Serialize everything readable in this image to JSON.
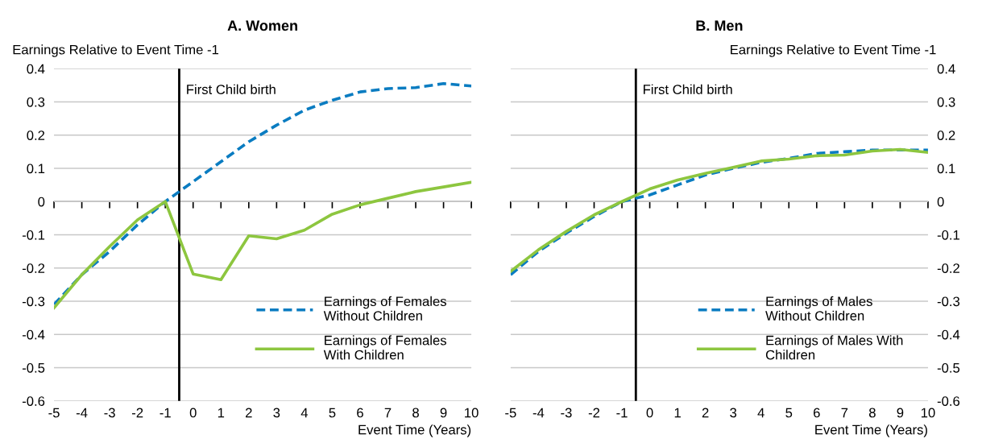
{
  "chart_data": [
    {
      "type": "line",
      "title": "A. Women",
      "xlabel": "Event Time (Years)",
      "ylabel": "Earnings Relative to Event Time -1",
      "x": [
        -5,
        -4,
        -3,
        -2,
        -1,
        0,
        1,
        2,
        3,
        4,
        5,
        6,
        7,
        8,
        9,
        10
      ],
      "xlim": [
        -5,
        10
      ],
      "xticks": [
        -5,
        -4,
        -3,
        -2,
        -1,
        0,
        1,
        2,
        3,
        4,
        5,
        6,
        7,
        8,
        9,
        10
      ],
      "ylim": [
        -0.6,
        0.4
      ],
      "yticks": [
        -0.6,
        -0.5,
        -0.4,
        -0.3,
        -0.2,
        -0.1,
        0,
        0.1,
        0.2,
        0.3,
        0.4
      ],
      "grid": "y",
      "legend": "bottom right",
      "series": [
        {
          "name": "Earnings of Females\nWithout Children",
          "color": "#0a7cc1",
          "line_style": "dashed",
          "values": [
            -0.31,
            -0.22,
            -0.15,
            -0.07,
            0.0,
            0.06,
            0.12,
            0.18,
            0.23,
            0.275,
            0.305,
            0.33,
            0.34,
            0.343,
            0.355,
            0.348
          ]
        },
        {
          "name": "Earnings of Females\nWith Children",
          "color": "#8dc63f",
          "line_style": "solid",
          "values": [
            -0.32,
            -0.22,
            -0.135,
            -0.055,
            0.0,
            -0.218,
            -0.235,
            -0.103,
            -0.112,
            -0.086,
            -0.038,
            -0.01,
            0.01,
            0.03,
            0.044,
            0.058
          ]
        }
      ],
      "ref_lines": [
        {
          "axis": "x",
          "value": -0.5,
          "label": "First Child birth",
          "color": "#000000"
        }
      ]
    },
    {
      "type": "line",
      "title": "B. Men",
      "xlabel": "Event Time (Years)",
      "y2label": "Earnings Relative to Event Time -1",
      "x": [
        -5,
        -4,
        -3,
        -2,
        -1,
        0,
        1,
        2,
        3,
        4,
        5,
        6,
        7,
        8,
        9,
        10
      ],
      "xlim": [
        -5,
        10
      ],
      "xticks": [
        -5,
        -4,
        -3,
        -2,
        -1,
        0,
        1,
        2,
        3,
        4,
        5,
        6,
        7,
        8,
        9,
        10
      ],
      "y2lim": [
        -0.6,
        0.4
      ],
      "y2ticks": [
        -0.6,
        -0.5,
        -0.4,
        -0.3,
        -0.2,
        -0.1,
        0,
        0.1,
        0.2,
        0.3,
        0.4
      ],
      "grid": "y",
      "legend": "bottom right",
      "series": [
        {
          "name": "Earnings of Males\nWithout Children",
          "color": "#0a7cc1",
          "line_style": "dashed",
          "axis": "y2",
          "values": [
            -0.22,
            -0.15,
            -0.095,
            -0.045,
            0.0,
            0.02,
            0.05,
            0.08,
            0.1,
            0.118,
            0.13,
            0.145,
            0.15,
            0.155,
            0.155,
            0.155
          ]
        },
        {
          "name": "Earnings of Males With\nChildren",
          "color": "#8dc63f",
          "line_style": "solid",
          "axis": "y2",
          "values": [
            -0.21,
            -0.145,
            -0.09,
            -0.04,
            0.0,
            0.038,
            0.065,
            0.085,
            0.103,
            0.122,
            0.128,
            0.138,
            0.14,
            0.152,
            0.157,
            0.148
          ]
        }
      ],
      "ref_lines": [
        {
          "axis": "x",
          "value": -0.5,
          "label": "First Child birth",
          "color": "#000000"
        }
      ]
    }
  ]
}
